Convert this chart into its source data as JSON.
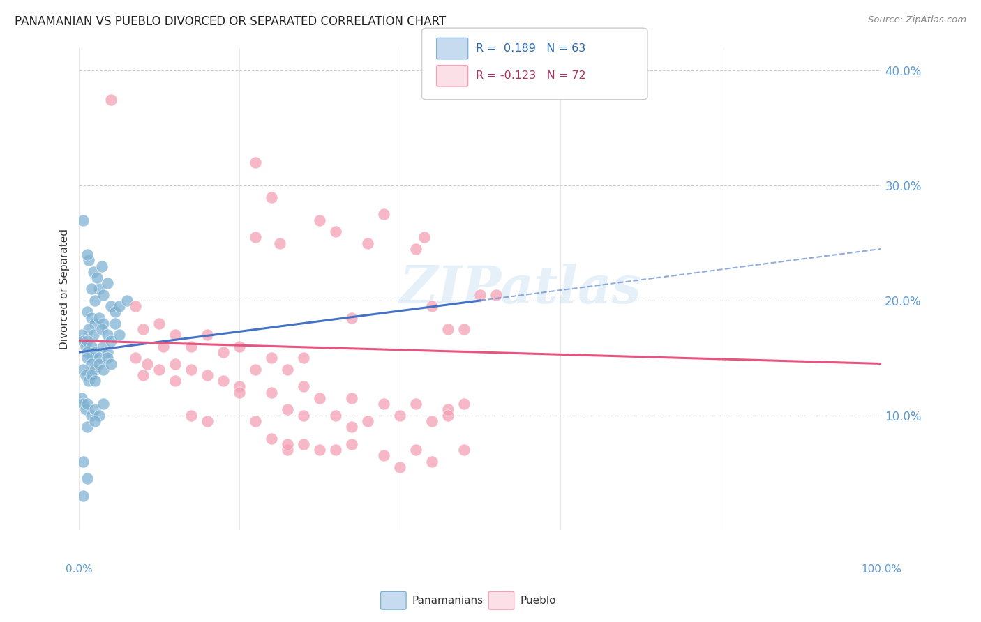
{
  "title": "PANAMANIAN VS PUEBLO DIVORCED OR SEPARATED CORRELATION CHART",
  "source": "Source: ZipAtlas.com",
  "ylabel": "Divorced or Separated",
  "legend_blue_r": "R =  0.189",
  "legend_blue_n": "N = 63",
  "legend_pink_r": "R = -0.123",
  "legend_pink_n": "N = 72",
  "legend_label1": "Panamanians",
  "legend_label2": "Pueblo",
  "blue_color": "#7fb3d3",
  "blue_fill": "#c6dbef",
  "blue_edge": "#7fb3d3",
  "pink_color": "#f4a0b5",
  "pink_fill": "#fce0e8",
  "pink_edge": "#f4a0b5",
  "trend_blue": "#4472c4",
  "trend_pink": "#e75480",
  "watermark": "ZIPatlas",
  "xlim": [
    0,
    100
  ],
  "ylim": [
    0,
    42
  ],
  "ytick_vals": [
    10,
    20,
    30,
    40
  ],
  "blue_scatter": [
    [
      0.5,
      27.0
    ],
    [
      1.2,
      23.5
    ],
    [
      1.8,
      22.5
    ],
    [
      2.5,
      21.0
    ],
    [
      2.8,
      23.0
    ],
    [
      1.0,
      24.0
    ],
    [
      3.5,
      21.5
    ],
    [
      2.0,
      20.0
    ],
    [
      4.0,
      19.5
    ],
    [
      3.0,
      20.5
    ],
    [
      4.5,
      19.0
    ],
    [
      1.5,
      21.0
    ],
    [
      5.0,
      19.5
    ],
    [
      2.2,
      22.0
    ],
    [
      6.0,
      20.0
    ],
    [
      1.0,
      19.0
    ],
    [
      1.5,
      18.5
    ],
    [
      2.0,
      18.0
    ],
    [
      2.5,
      18.5
    ],
    [
      3.0,
      18.0
    ],
    [
      1.2,
      17.5
    ],
    [
      1.8,
      17.0
    ],
    [
      2.8,
      17.5
    ],
    [
      3.5,
      17.0
    ],
    [
      4.5,
      18.0
    ],
    [
      0.3,
      17.0
    ],
    [
      0.5,
      16.5
    ],
    [
      0.8,
      16.0
    ],
    [
      1.0,
      16.5
    ],
    [
      1.5,
      16.0
    ],
    [
      1.0,
      15.5
    ],
    [
      1.5,
      15.0
    ],
    [
      2.0,
      15.5
    ],
    [
      2.5,
      15.0
    ],
    [
      3.0,
      16.0
    ],
    [
      3.5,
      15.5
    ],
    [
      4.0,
      16.5
    ],
    [
      5.0,
      17.0
    ],
    [
      1.0,
      15.0
    ],
    [
      1.5,
      14.5
    ],
    [
      2.0,
      14.0
    ],
    [
      2.5,
      14.5
    ],
    [
      3.0,
      14.0
    ],
    [
      3.5,
      15.0
    ],
    [
      4.0,
      14.5
    ],
    [
      0.5,
      14.0
    ],
    [
      0.8,
      13.5
    ],
    [
      1.2,
      13.0
    ],
    [
      1.5,
      13.5
    ],
    [
      2.0,
      13.0
    ],
    [
      0.3,
      11.5
    ],
    [
      0.5,
      11.0
    ],
    [
      0.8,
      10.5
    ],
    [
      1.0,
      11.0
    ],
    [
      1.5,
      10.0
    ],
    [
      2.0,
      10.5
    ],
    [
      2.5,
      10.0
    ],
    [
      3.0,
      11.0
    ],
    [
      1.0,
      9.0
    ],
    [
      2.0,
      9.5
    ],
    [
      0.5,
      6.0
    ],
    [
      1.0,
      4.5
    ],
    [
      0.5,
      3.0
    ]
  ],
  "pink_scatter": [
    [
      4.0,
      37.5
    ],
    [
      22.0,
      32.0
    ],
    [
      24.0,
      29.0
    ],
    [
      30.0,
      27.0
    ],
    [
      32.0,
      26.0
    ],
    [
      22.0,
      25.5
    ],
    [
      25.0,
      25.0
    ],
    [
      36.0,
      25.0
    ],
    [
      38.0,
      27.5
    ],
    [
      42.0,
      24.5
    ],
    [
      43.0,
      25.5
    ],
    [
      50.0,
      20.5
    ],
    [
      52.0,
      20.5
    ],
    [
      44.0,
      19.5
    ],
    [
      34.0,
      18.5
    ],
    [
      46.0,
      17.5
    ],
    [
      48.0,
      17.5
    ],
    [
      7.0,
      19.5
    ],
    [
      10.0,
      18.0
    ],
    [
      8.0,
      17.5
    ],
    [
      12.0,
      17.0
    ],
    [
      16.0,
      17.0
    ],
    [
      10.5,
      16.0
    ],
    [
      14.0,
      16.0
    ],
    [
      18.0,
      15.5
    ],
    [
      20.0,
      16.0
    ],
    [
      24.0,
      15.0
    ],
    [
      28.0,
      15.0
    ],
    [
      7.0,
      15.0
    ],
    [
      8.5,
      14.5
    ],
    [
      12.0,
      14.5
    ],
    [
      10.0,
      14.0
    ],
    [
      14.0,
      14.0
    ],
    [
      16.0,
      13.5
    ],
    [
      22.0,
      14.0
    ],
    [
      26.0,
      14.0
    ],
    [
      8.0,
      13.5
    ],
    [
      12.0,
      13.0
    ],
    [
      18.0,
      13.0
    ],
    [
      20.0,
      12.5
    ],
    [
      28.0,
      12.5
    ],
    [
      20.0,
      12.0
    ],
    [
      24.0,
      12.0
    ],
    [
      30.0,
      11.5
    ],
    [
      34.0,
      11.5
    ],
    [
      38.0,
      11.0
    ],
    [
      42.0,
      11.0
    ],
    [
      46.0,
      10.5
    ],
    [
      48.0,
      11.0
    ],
    [
      26.0,
      10.5
    ],
    [
      28.0,
      10.0
    ],
    [
      32.0,
      10.0
    ],
    [
      22.0,
      9.5
    ],
    [
      14.0,
      10.0
    ],
    [
      16.0,
      9.5
    ],
    [
      34.0,
      9.0
    ],
    [
      36.0,
      9.5
    ],
    [
      40.0,
      10.0
    ],
    [
      44.0,
      9.5
    ],
    [
      46.0,
      10.0
    ],
    [
      24.0,
      8.0
    ],
    [
      28.0,
      7.5
    ],
    [
      26.0,
      7.0
    ],
    [
      32.0,
      7.0
    ],
    [
      38.0,
      6.5
    ],
    [
      40.0,
      5.5
    ],
    [
      44.0,
      6.0
    ],
    [
      26.0,
      7.5
    ],
    [
      30.0,
      7.0
    ],
    [
      34.0,
      7.5
    ],
    [
      42.0,
      7.0
    ],
    [
      48.0,
      7.0
    ]
  ],
  "blue_trend_x": [
    0,
    50,
    100
  ],
  "blue_trend_y": [
    15.5,
    20.0,
    24.5
  ],
  "blue_solid_end": 50,
  "pink_trend_x": [
    0,
    100
  ],
  "pink_trend_y": [
    16.5,
    14.5
  ]
}
